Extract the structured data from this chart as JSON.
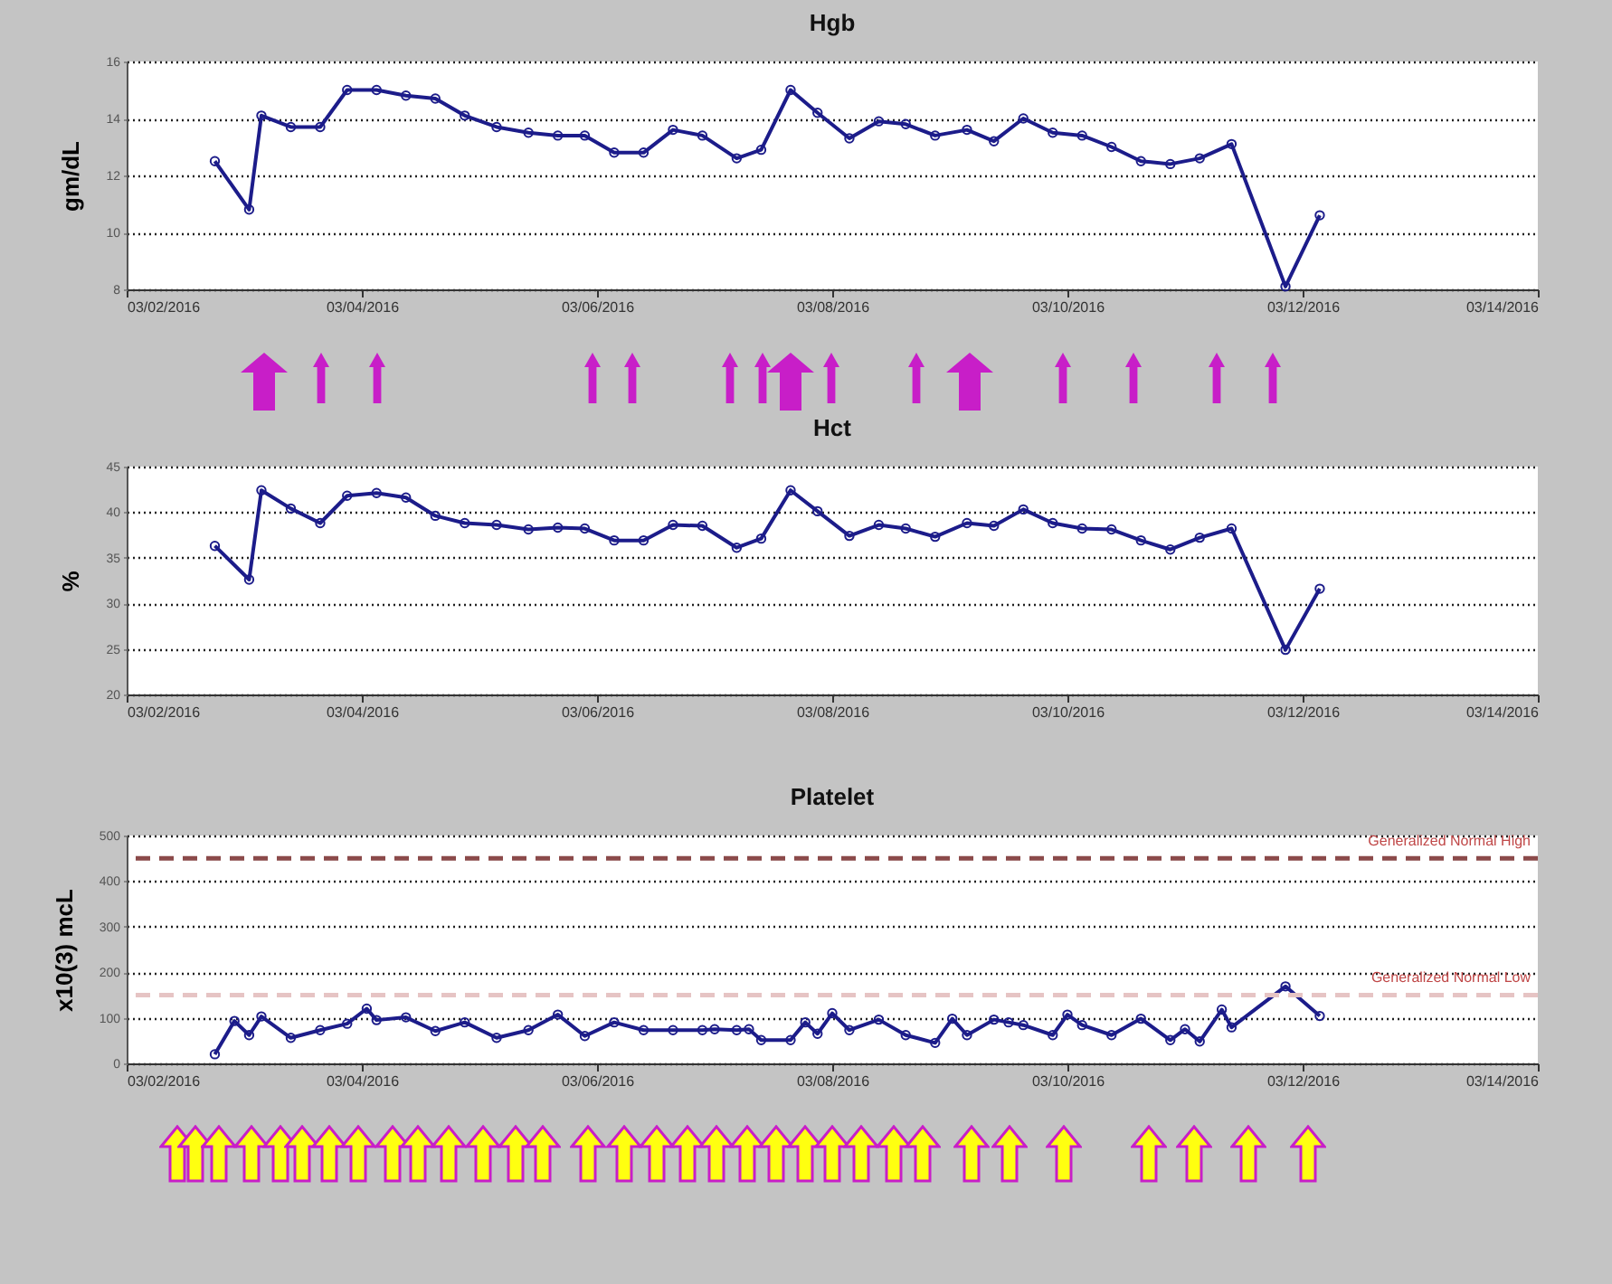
{
  "chart_data": [
    {
      "type": "line",
      "title": "Hgb",
      "ylabel": "gm/dL",
      "marker": "circle",
      "grid": "y",
      "xlim": [
        "2016-03-02",
        "2016-03-14"
      ],
      "ylim": [
        8,
        16
      ],
      "yticks": [
        8,
        10,
        12,
        14,
        16
      ],
      "xticks": [
        {
          "value": "2016-03-02",
          "label": "03/02/2016"
        },
        {
          "value": "2016-03-04",
          "label": "03/04/2016"
        },
        {
          "value": "2016-03-06",
          "label": "03/06/2016"
        },
        {
          "value": "2016-03-08",
          "label": "03/08/2016"
        },
        {
          "value": "2016-03-10",
          "label": "03/10/2016"
        },
        {
          "value": "2016-03-12",
          "label": "03/12/2016"
        },
        {
          "value": "2016-03-14",
          "label": "03/14/2016"
        }
      ],
      "x": [
        "2016-03-02T18:00",
        "2016-03-03T01:00",
        "2016-03-03T03:30",
        "2016-03-03T09:30",
        "2016-03-03T15:30",
        "2016-03-03T21:00",
        "2016-03-04T03:00",
        "2016-03-04T09:00",
        "2016-03-04T15:00",
        "2016-03-04T21:00",
        "2016-03-05T03:30",
        "2016-03-05T10:00",
        "2016-03-05T16:00",
        "2016-03-05T21:30",
        "2016-03-06T03:30",
        "2016-03-06T09:30",
        "2016-03-06T15:30",
        "2016-03-06T21:30",
        "2016-03-07T04:30",
        "2016-03-07T09:30",
        "2016-03-07T15:30",
        "2016-03-07T21:00",
        "2016-03-08T03:30",
        "2016-03-08T09:30",
        "2016-03-08T15:00",
        "2016-03-08T21:00",
        "2016-03-09T03:30",
        "2016-03-09T09:00",
        "2016-03-09T15:00",
        "2016-03-09T21:00",
        "2016-03-10T03:00",
        "2016-03-10T09:00",
        "2016-03-10T15:00",
        "2016-03-10T21:00",
        "2016-03-11T03:00",
        "2016-03-11T09:30",
        "2016-03-11T20:30",
        "2016-03-12T03:30"
      ],
      "series": [
        {
          "color": "#1c1c8a",
          "values": [
            12.5,
            10.8,
            14.1,
            13.7,
            13.7,
            15.0,
            15.0,
            14.8,
            14.7,
            14.1,
            13.7,
            13.5,
            13.4,
            13.4,
            12.8,
            12.8,
            13.6,
            13.4,
            12.6,
            12.9,
            15.0,
            14.2,
            13.3,
            13.9,
            13.8,
            13.4,
            13.6,
            13.2,
            14.0,
            13.5,
            13.4,
            13.0,
            12.5,
            12.4,
            12.6,
            13.1,
            8.1,
            10.6
          ]
        }
      ]
    },
    {
      "type": "line",
      "title": "Hct",
      "ylabel": "%",
      "marker": "circle",
      "grid": "y",
      "xlim": [
        "2016-03-02",
        "2016-03-14"
      ],
      "ylim": [
        20,
        45
      ],
      "yticks": [
        20,
        25,
        30,
        35,
        40,
        45
      ],
      "xticks": [
        {
          "value": "2016-03-02",
          "label": "03/02/2016"
        },
        {
          "value": "2016-03-04",
          "label": "03/04/2016"
        },
        {
          "value": "2016-03-06",
          "label": "03/06/2016"
        },
        {
          "value": "2016-03-08",
          "label": "03/08/2016"
        },
        {
          "value": "2016-03-10",
          "label": "03/10/2016"
        },
        {
          "value": "2016-03-12",
          "label": "03/12/2016"
        },
        {
          "value": "2016-03-14",
          "label": "03/14/2016"
        }
      ],
      "x": [
        "2016-03-02T18:00",
        "2016-03-03T01:00",
        "2016-03-03T03:30",
        "2016-03-03T09:30",
        "2016-03-03T15:30",
        "2016-03-03T21:00",
        "2016-03-04T03:00",
        "2016-03-04T09:00",
        "2016-03-04T15:00",
        "2016-03-04T21:00",
        "2016-03-05T03:30",
        "2016-03-05T10:00",
        "2016-03-05T16:00",
        "2016-03-05T21:30",
        "2016-03-06T03:30",
        "2016-03-06T09:30",
        "2016-03-06T15:30",
        "2016-03-06T21:30",
        "2016-03-07T04:30",
        "2016-03-07T09:30",
        "2016-03-07T15:30",
        "2016-03-07T21:00",
        "2016-03-08T03:30",
        "2016-03-08T09:30",
        "2016-03-08T15:00",
        "2016-03-08T21:00",
        "2016-03-09T03:30",
        "2016-03-09T09:00",
        "2016-03-09T15:00",
        "2016-03-09T21:00",
        "2016-03-10T03:00",
        "2016-03-10T09:00",
        "2016-03-10T15:00",
        "2016-03-10T21:00",
        "2016-03-11T03:00",
        "2016-03-11T09:30",
        "2016-03-11T20:30",
        "2016-03-12T03:30"
      ],
      "series": [
        {
          "color": "#1c1c8a",
          "values": [
            36.3,
            32.6,
            42.4,
            40.4,
            38.8,
            41.8,
            42.1,
            41.6,
            39.6,
            38.8,
            38.6,
            38.1,
            38.3,
            38.2,
            36.9,
            36.9,
            38.6,
            38.5,
            36.1,
            37.1,
            42.4,
            40.1,
            37.4,
            38.6,
            38.2,
            37.3,
            38.8,
            38.5,
            40.3,
            38.8,
            38.2,
            38.1,
            36.9,
            35.9,
            37.2,
            38.2,
            24.9,
            31.6
          ]
        }
      ]
    },
    {
      "type": "line",
      "title": "Platelet",
      "ylabel": "x10(3) mcL",
      "marker": "circle",
      "grid": "y",
      "xlim": [
        "2016-03-02",
        "2016-03-14"
      ],
      "ylim": [
        0,
        500
      ],
      "yticks": [
        0,
        100,
        200,
        300,
        400,
        500
      ],
      "xticks": [
        {
          "value": "2016-03-02",
          "label": "03/02/2016"
        },
        {
          "value": "2016-03-04",
          "label": "03/04/2016"
        },
        {
          "value": "2016-03-06",
          "label": "03/06/2016"
        },
        {
          "value": "2016-03-08",
          "label": "03/08/2016"
        },
        {
          "value": "2016-03-10",
          "label": "03/10/2016"
        },
        {
          "value": "2016-03-12",
          "label": "03/12/2016"
        },
        {
          "value": "2016-03-14",
          "label": "03/14/2016"
        }
      ],
      "x": [
        "2016-03-02T18:00",
        "2016-03-02T22:00",
        "2016-03-03T01:00",
        "2016-03-03T03:30",
        "2016-03-03T09:30",
        "2016-03-03T15:30",
        "2016-03-03T21:00",
        "2016-03-04T01:00",
        "2016-03-04T03:00",
        "2016-03-04T09:00",
        "2016-03-04T15:00",
        "2016-03-04T21:00",
        "2016-03-05T03:30",
        "2016-03-05T10:00",
        "2016-03-05T16:00",
        "2016-03-05T21:30",
        "2016-03-06T03:30",
        "2016-03-06T09:30",
        "2016-03-06T15:30",
        "2016-03-06T21:30",
        "2016-03-07T00:00",
        "2016-03-07T04:30",
        "2016-03-07T07:00",
        "2016-03-07T09:30",
        "2016-03-07T15:30",
        "2016-03-07T18:30",
        "2016-03-07T21:00",
        "2016-03-08T00:00",
        "2016-03-08T03:30",
        "2016-03-08T09:30",
        "2016-03-08T15:00",
        "2016-03-08T21:00",
        "2016-03-09T00:30",
        "2016-03-09T03:30",
        "2016-03-09T09:00",
        "2016-03-09T12:00",
        "2016-03-09T15:00",
        "2016-03-09T21:00",
        "2016-03-10T00:00",
        "2016-03-10T03:00",
        "2016-03-10T09:00",
        "2016-03-10T15:00",
        "2016-03-10T21:00",
        "2016-03-11T00:00",
        "2016-03-11T03:00",
        "2016-03-11T07:30",
        "2016-03-11T09:30",
        "2016-03-11T20:30",
        "2016-03-12T03:30"
      ],
      "series": [
        {
          "color": "#1c1c8a",
          "values": [
            20,
            93,
            62,
            103,
            56,
            73,
            87,
            120,
            95,
            101,
            71,
            90,
            56,
            73,
            107,
            60,
            90,
            73,
            73,
            73,
            75,
            73,
            75,
            51,
            51,
            90,
            65,
            110,
            73,
            96,
            62,
            45,
            98,
            62,
            96,
            90,
            84,
            62,
            107,
            84,
            62,
            98,
            51,
            75,
            48,
            118,
            79,
            169,
            104
          ]
        }
      ],
      "ref_lines": [
        {
          "axis": "y",
          "value": 450,
          "label": "Generalized Normal High",
          "color": "#8b4a4a",
          "line_style": "dashed"
        },
        {
          "axis": "y",
          "value": 150,
          "label": "Generalized Normal Low",
          "color": "#e6c4c4",
          "line_style": "dashed"
        }
      ]
    }
  ]
}
